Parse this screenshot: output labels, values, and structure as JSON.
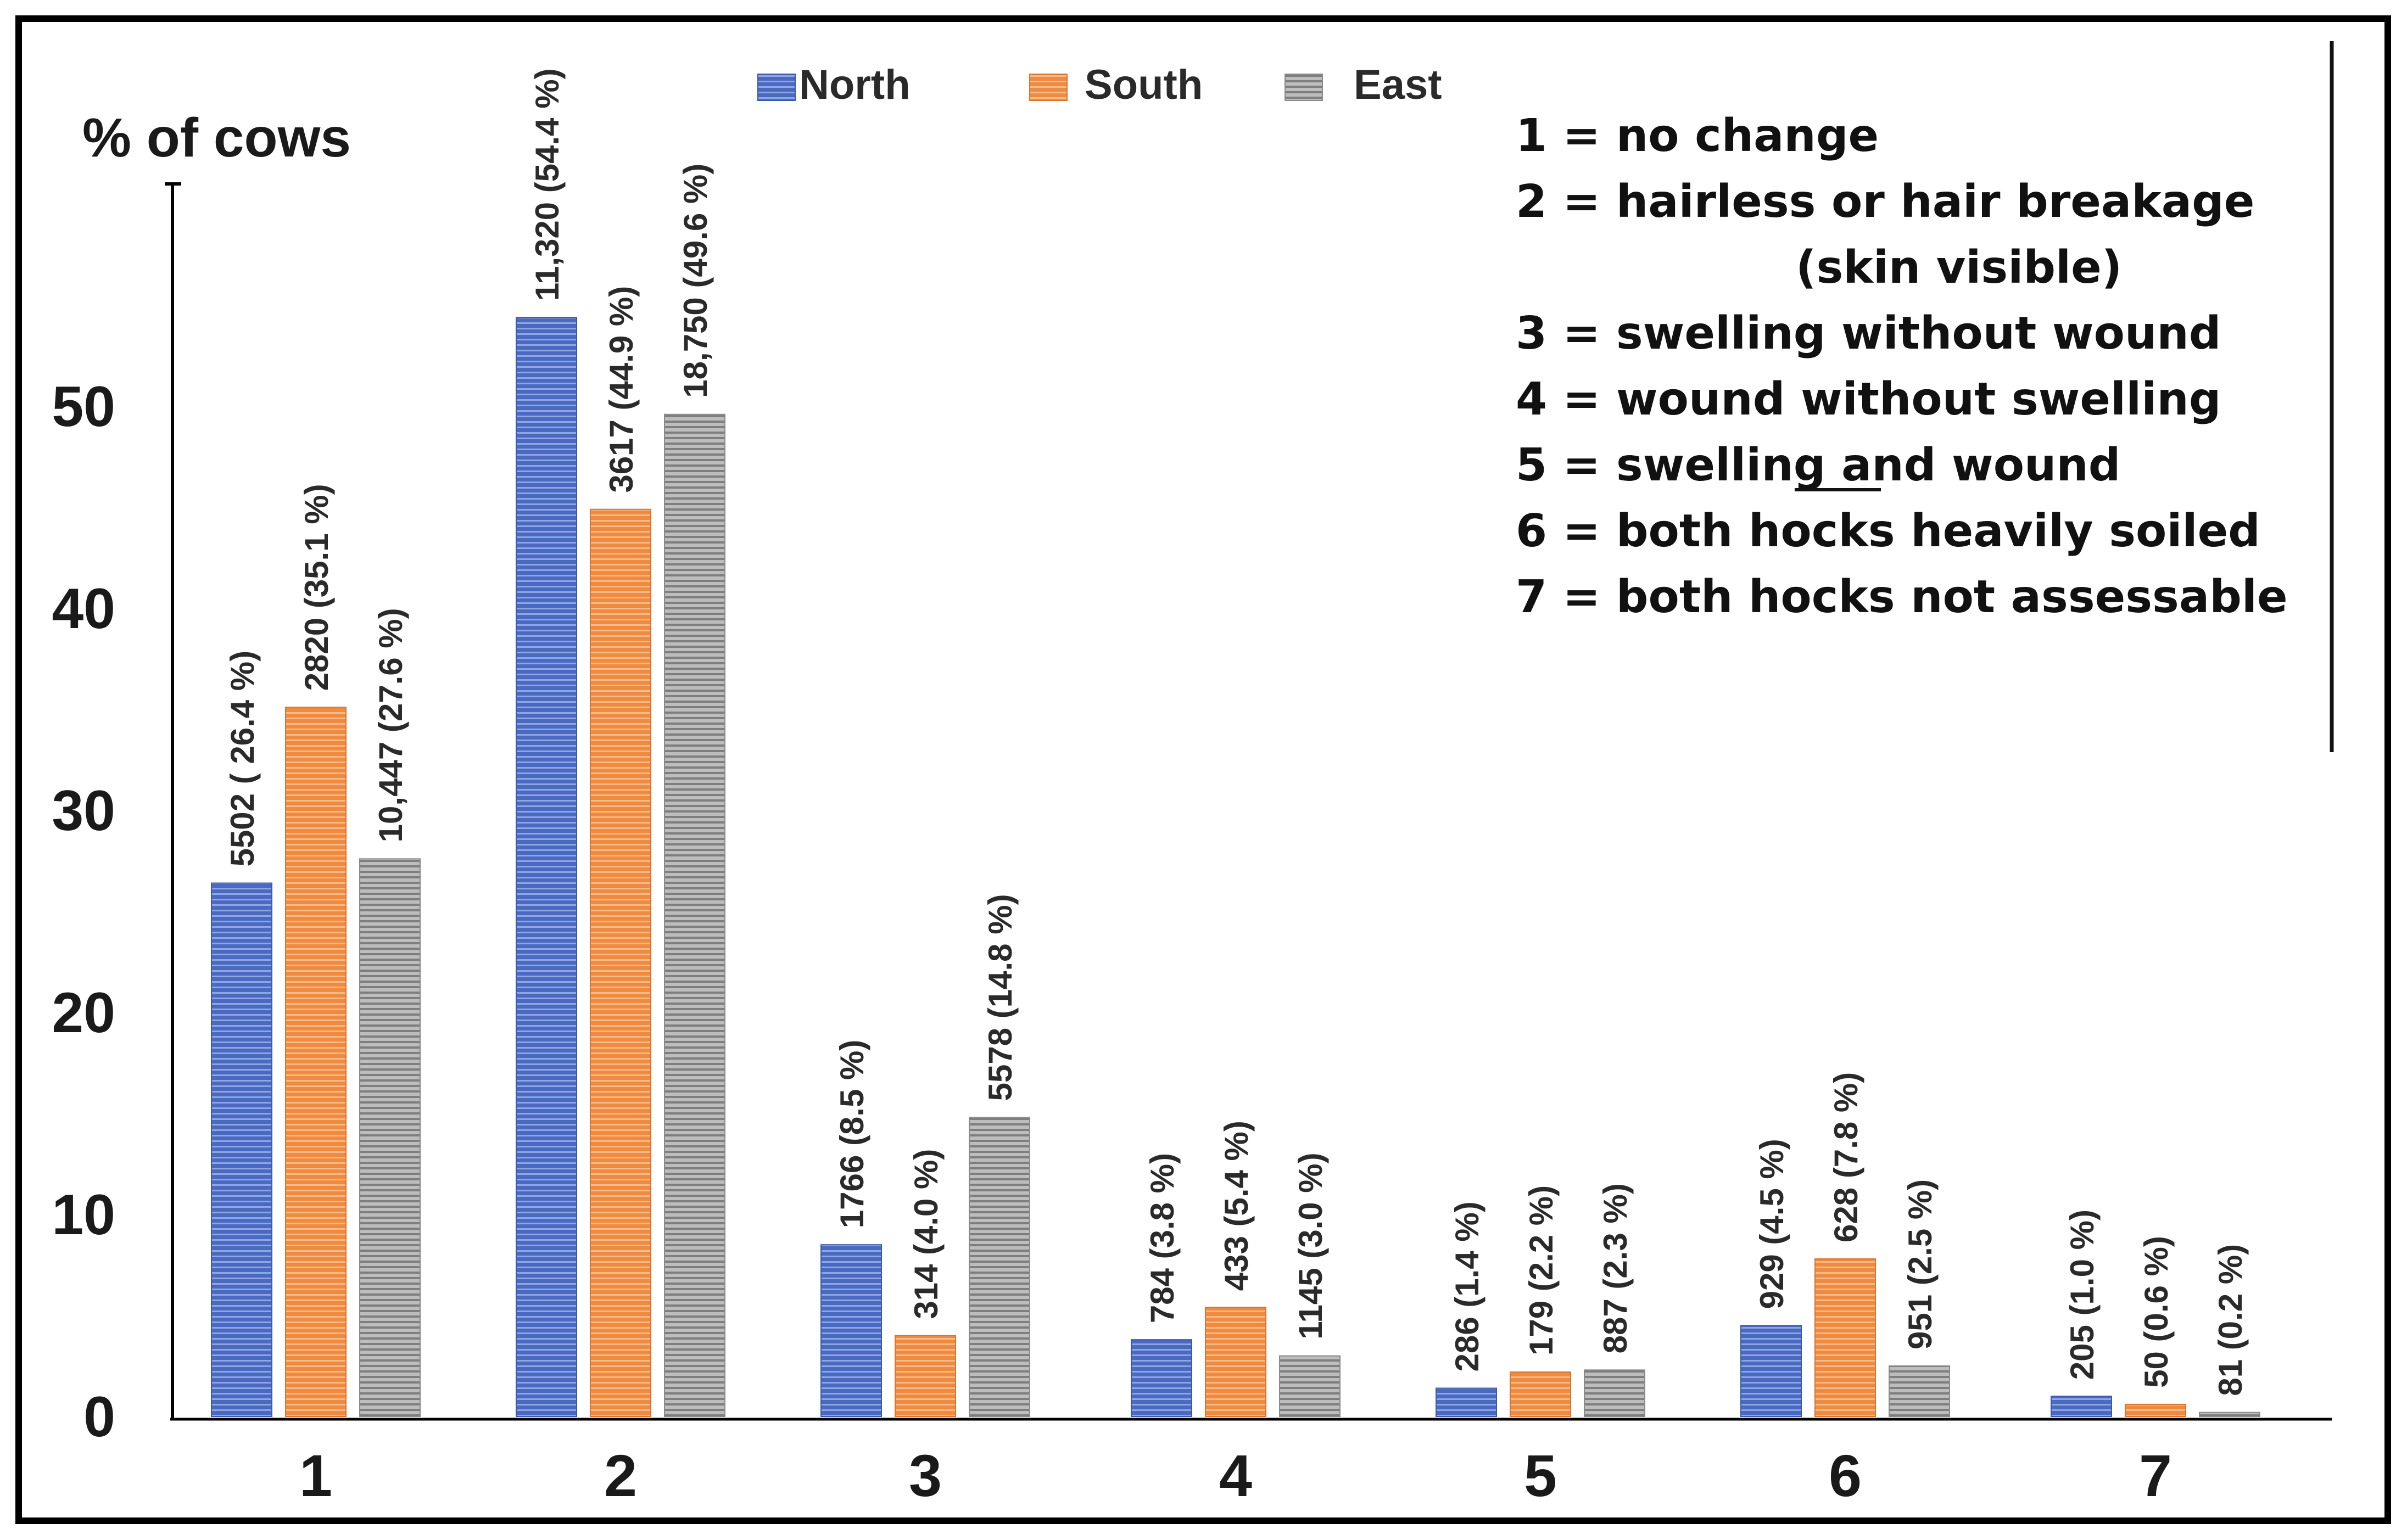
{
  "chart_data": {
    "type": "bar",
    "ylabel": "% of cows",
    "ylim": [
      0,
      60
    ],
    "yticks": [
      0,
      10,
      20,
      30,
      40,
      50
    ],
    "categories": [
      "1",
      "2",
      "3",
      "4",
      "5",
      "6",
      "7"
    ],
    "series": [
      {
        "name": "North",
        "color": "#4a69c1",
        "values": [
          26.4,
          54.4,
          8.5,
          3.8,
          1.4,
          4.5,
          1.0
        ],
        "labels": [
          "5502 ( 26.4 %)",
          "11,320 (54.4 %)",
          "1766 (8.5 %)",
          "784 (3.8 %)",
          "286 (1.4 %)",
          "929 (4.5 %)",
          "205 (1.0 %)"
        ]
      },
      {
        "name": "South",
        "color": "#ef8a3e",
        "values": [
          35.1,
          44.9,
          4.0,
          5.4,
          2.2,
          7.8,
          0.6
        ],
        "labels": [
          "2820 (35.1 %)",
          "3617 (44.9 %)",
          "314 (4.0 %)",
          "433 (5.4 %)",
          "179 (2.2 %)",
          "628 (7.8 %)",
          "50 (0.6 %)"
        ]
      },
      {
        "name": "East",
        "color": "#a8a8a8",
        "values": [
          27.6,
          49.6,
          14.8,
          3.0,
          2.3,
          2.5,
          0.2
        ],
        "labels": [
          "10,447 (27.6 %)",
          "18,750 (49.6 %)",
          "5578 (14.8 %)",
          "1145 (3.0 %)",
          "887 (2.3 %)",
          "951 (2.5 %)",
          "81 (0.2 %)"
        ]
      }
    ],
    "legend": [
      "North",
      "South",
      "East"
    ],
    "category_descriptions": [
      "1 = no change",
      "2 = hairless or hair breakage",
      "(skin visible)",
      "3 = swelling without wound",
      "4 = wound without swelling",
      "5 = swelling and wound",
      "6 = both hocks heavily soiled",
      "7 = both hocks not assessable"
    ]
  }
}
